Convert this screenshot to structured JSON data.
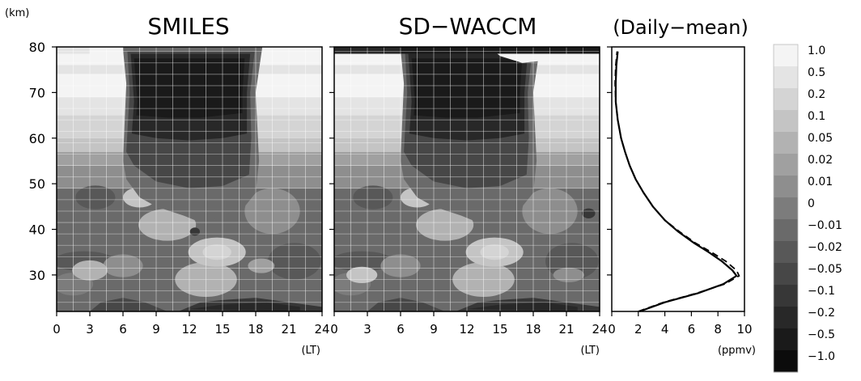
{
  "chart_data": [
    {
      "type": "heatmap",
      "title": "SMILES",
      "xlabel": "(LT)",
      "ylabel": "(km)",
      "x_ticks": [
        0,
        3,
        6,
        9,
        12,
        15,
        18,
        21,
        24
      ],
      "y_ticks": [
        30,
        40,
        50,
        60,
        70,
        80
      ],
      "xlim": [
        0,
        24
      ],
      "ylim": [
        22,
        80
      ]
    },
    {
      "type": "heatmap",
      "title": "SD−WACCM",
      "xlabel": "(LT)",
      "x_ticks": [
        0,
        3,
        6,
        9,
        12,
        15,
        18,
        21,
        24
      ],
      "y_ticks": [
        30,
        40,
        50,
        60,
        70,
        80
      ],
      "xlim": [
        0,
        24
      ],
      "ylim": [
        22,
        80
      ]
    },
    {
      "type": "line",
      "title": "(Daily−mean)",
      "xlabel": "(ppmv)",
      "x_ticks": [
        0,
        2,
        4,
        6,
        8,
        10
      ],
      "xlim": [
        0,
        10
      ],
      "ylim": [
        22,
        80
      ],
      "series": [
        {
          "style": "solid",
          "points": [
            [
              2.1,
              22
            ],
            [
              4.0,
              24
            ],
            [
              6.5,
              26
            ],
            [
              8.4,
              28
            ],
            [
              9.4,
              29.8
            ],
            [
              9.1,
              31
            ],
            [
              8.3,
              33
            ],
            [
              7.3,
              35
            ],
            [
              6.2,
              37
            ],
            [
              5.0,
              39.5
            ],
            [
              4.0,
              42
            ],
            [
              3.1,
              45
            ],
            [
              2.4,
              48
            ],
            [
              1.8,
              51
            ],
            [
              1.35,
              54
            ],
            [
              1.0,
              57
            ],
            [
              0.7,
              60
            ],
            [
              0.45,
              64
            ],
            [
              0.3,
              68
            ],
            [
              0.3,
              72
            ],
            [
              0.35,
              76
            ],
            [
              0.45,
              79
            ]
          ]
        },
        {
          "style": "dashed",
          "points": [
            [
              2.0,
              22
            ],
            [
              3.9,
              24
            ],
            [
              6.4,
              26
            ],
            [
              8.5,
              28
            ],
            [
              9.6,
              29.8
            ],
            [
              9.4,
              31
            ],
            [
              8.6,
              33
            ],
            [
              7.5,
              35
            ],
            [
              6.3,
              37
            ],
            [
              5.1,
              39.5
            ],
            [
              4.0,
              42
            ],
            [
              3.1,
              45
            ],
            [
              2.4,
              48
            ],
            [
              1.8,
              51
            ],
            [
              1.35,
              54
            ],
            [
              1.0,
              57
            ],
            [
              0.7,
              60
            ],
            [
              0.45,
              64
            ],
            [
              0.3,
              68
            ],
            [
              0.25,
              72
            ],
            [
              0.3,
              76
            ],
            [
              0.4,
              79
            ]
          ]
        }
      ]
    }
  ],
  "colorbar": {
    "labels": [
      "1.0",
      "0.5",
      "0.2",
      "0.1",
      "0.05",
      "0.02",
      "0.01",
      "0",
      "−0.01",
      "−0.02",
      "−0.05",
      "−0.1",
      "−0.2",
      "−0.5",
      "−1.0"
    ]
  },
  "colors": {
    "levels": [
      "#f4f4f4",
      "#e4e4e4",
      "#d4d4d4",
      "#c4c4c4",
      "#b2b2b2",
      "#a0a0a0",
      "#8e8e8e",
      "#7c7c7c",
      "#6a6a6a",
      "#585858",
      "#474747",
      "#373737",
      "#282828",
      "#1a1a1a",
      "#0c0c0c"
    ]
  }
}
